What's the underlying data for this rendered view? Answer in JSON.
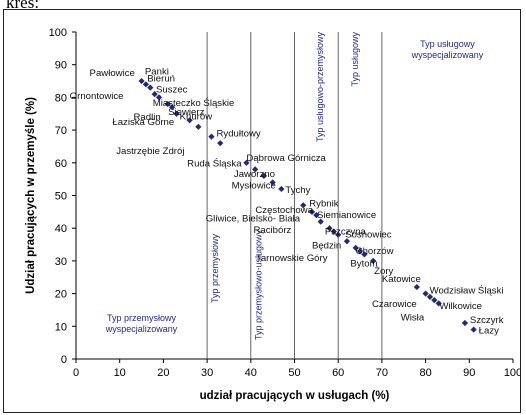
{
  "caption": "kres:",
  "chart_data": {
    "type": "scatter",
    "xlabel": "udział pracujących w usługach (%)",
    "ylabel": "Udział pracujących w przemyśle (%)",
    "xlim": [
      0,
      100
    ],
    "ylim": [
      0,
      100
    ],
    "xticks": [
      0,
      10,
      20,
      30,
      40,
      50,
      60,
      70,
      80,
      90,
      100
    ],
    "yticks": [
      0,
      10,
      20,
      30,
      40,
      50,
      60,
      70,
      80,
      90,
      100
    ],
    "grid": false,
    "marker_color": "#1f2a7a",
    "line_color": "#555555",
    "boundaries": [
      30,
      40,
      50,
      60,
      70
    ],
    "zones": [
      {
        "text": "Typ przemysłowy wyspecjalizowany",
        "lines": [
          "Typ przemysłowy",
          "wyspecjalizowany"
        ]
      },
      {
        "text": "Typ przemysłowy",
        "lines": [
          "Typ przemysłowy"
        ]
      },
      {
        "text": "Typ przemysłowo-usługowy",
        "lines": [
          "Typ przemysłowo-usługowy"
        ]
      },
      {
        "text": "Typ usługowo-przemysłowy",
        "lines": [
          "Typ usługowo-przemysłowy"
        ]
      },
      {
        "text": "Typ usługowy",
        "lines": [
          "Typ usługowy"
        ]
      },
      {
        "text": "Typ usługowy wyspecjalizowany",
        "lines": [
          "Typ usługowy",
          "wyspecjalizowany"
        ]
      }
    ],
    "points": [
      {
        "label": "Pawłowice",
        "x": 15,
        "y": 85
      },
      {
        "label": "Panki",
        "x": 16,
        "y": 84
      },
      {
        "label": "Bieruń",
        "x": 17,
        "y": 83
      },
      {
        "label": "Ornontowice",
        "x": 18,
        "y": 81
      },
      {
        "label": "Suszec",
        "x": 19,
        "y": 80
      },
      {
        "label": "Miasteczko Śląskie",
        "x": 21,
        "y": 78
      },
      {
        "label": "Siewierz",
        "x": 22,
        "y": 77
      },
      {
        "label": "Radlin",
        "x": 23,
        "y": 75
      },
      {
        "label": "Knurów",
        "x": 26,
        "y": 73
      },
      {
        "label": "Łaziska Górne",
        "x": 28,
        "y": 71
      },
      {
        "label": "Rydułtowy",
        "x": 31,
        "y": 68
      },
      {
        "label": "Jastrzębie Zdrój",
        "x": 33,
        "y": 66
      },
      {
        "label": "Dąbrowa Górnicza",
        "x": 39,
        "y": 60
      },
      {
        "label": "Ruda Śląska",
        "x": 41,
        "y": 58
      },
      {
        "label": "Jaworzno",
        "x": 43,
        "y": 56
      },
      {
        "label": "Mysłowice",
        "x": 45,
        "y": 54
      },
      {
        "label": "Tychy",
        "x": 47,
        "y": 52
      },
      {
        "label": "Rybnik",
        "x": 52,
        "y": 47
      },
      {
        "label": "Siemianowice",
        "x": 54,
        "y": 45
      },
      {
        "label": "Częstochowa",
        "x": 55,
        "y": 44
      },
      {
        "label": "Gliwice, Bielsko- Biała",
        "x": 56,
        "y": 42
      },
      {
        "label": "Racibórz",
        "x": 58,
        "y": 40
      },
      {
        "label": "Pszczyna",
        "x": 59,
        "y": 39
      },
      {
        "label": "Sosnowiec",
        "x": 60,
        "y": 38
      },
      {
        "label": "Będzin",
        "x": 62,
        "y": 36
      },
      {
        "label": "Chorzów",
        "x": 64,
        "y": 34
      },
      {
        "label": "Tarnowskie Góry",
        "x": 65,
        "y": 33
      },
      {
        "label": "Bytom",
        "x": 66,
        "y": 32
      },
      {
        "label": "Żory",
        "x": 68,
        "y": 30
      },
      {
        "label": "Katowice",
        "x": 78,
        "y": 22
      },
      {
        "label": "Wodzisław Śląski",
        "x": 80,
        "y": 20
      },
      {
        "label": "Czarowice",
        "x": 81,
        "y": 19
      },
      {
        "label": "Wilkowice",
        "x": 82,
        "y": 18
      },
      {
        "label": "Wisła",
        "x": 83,
        "y": 17
      },
      {
        "label": "Szczyrk",
        "x": 89,
        "y": 11
      },
      {
        "label": "Łazy",
        "x": 91,
        "y": 9
      }
    ]
  }
}
